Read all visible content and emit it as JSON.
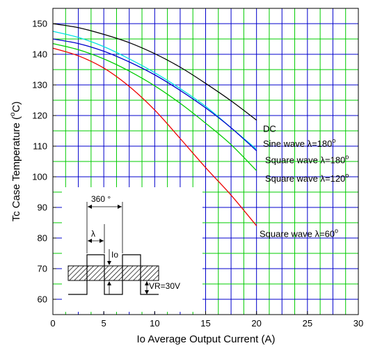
{
  "chart_data": {
    "type": "line",
    "title": "",
    "xlabel": "Io   Average Output Current   (A)",
    "ylabel": "Tc   Case Temperature   (°C)",
    "ylabel_main": "Tc   Case Temperature   (",
    "ylabel_sup": "o",
    "ylabel_end": "C)",
    "xlim": [
      0,
      30
    ],
    "ylim": [
      55,
      155
    ],
    "xticks": [
      0,
      5,
      10,
      15,
      20,
      25,
      30
    ],
    "yticks": [
      60,
      70,
      80,
      90,
      100,
      110,
      120,
      130,
      140,
      150
    ],
    "grid": true,
    "grid_colors": {
      "green": "#00cc00",
      "blue": "#0000cc"
    },
    "series": [
      {
        "name": "DC",
        "color": "#000000",
        "x": [
          0,
          2.5,
          5,
          7.5,
          10,
          12.5,
          15,
          17.5,
          20
        ],
        "y": [
          150,
          148.7,
          146.5,
          143.8,
          140.2,
          135.8,
          130.5,
          124.8,
          118.5
        ]
      },
      {
        "name": "Sine wave λ=180°",
        "color": "#00e0e0",
        "x": [
          0,
          2.5,
          5,
          7.5,
          10,
          12.5,
          15,
          17.5,
          20
        ],
        "y": [
          147.5,
          145.5,
          142.5,
          138.5,
          134,
          128.8,
          123,
          116,
          109
        ]
      },
      {
        "name": "Square wave λ=180°",
        "color": "#0000cc",
        "x": [
          0,
          2.5,
          5,
          7.5,
          10,
          12.5,
          15,
          17.5,
          20
        ],
        "y": [
          145,
          143.5,
          141,
          137.5,
          133.3,
          128.2,
          122.5,
          116,
          108.5
        ]
      },
      {
        "name": "Square wave λ=120°",
        "color": "#00cc00",
        "x": [
          0,
          2.5,
          5,
          7.5,
          10,
          12.5,
          15,
          17.5,
          20
        ],
        "y": [
          143.5,
          141.5,
          138.5,
          134.5,
          129.7,
          124,
          117.5,
          110.5,
          102
        ]
      },
      {
        "name": "Square wave λ=60°",
        "color": "#ee0000",
        "x": [
          0,
          2.5,
          5,
          7.5,
          10,
          12.5,
          15,
          17.5,
          20
        ],
        "y": [
          142,
          139.5,
          135.5,
          129.5,
          121.8,
          112.5,
          103,
          94,
          84
        ]
      }
    ],
    "curve_labels": [
      {
        "text_main": "DC",
        "text_sup": ""
      },
      {
        "text_main": "Sine wave λ=180",
        "text_sup": "o"
      },
      {
        "text_main": "Square wave λ=180",
        "text_sup": "o"
      },
      {
        "text_main": "Square wave λ=120",
        "text_sup": "o"
      },
      {
        "text_main": "Square wave λ=60",
        "text_sup": "o"
      }
    ],
    "inset": {
      "period_label": "360 °",
      "lambda_label": "λ",
      "io_label": "Io",
      "vr_label": "VR=30V"
    }
  }
}
